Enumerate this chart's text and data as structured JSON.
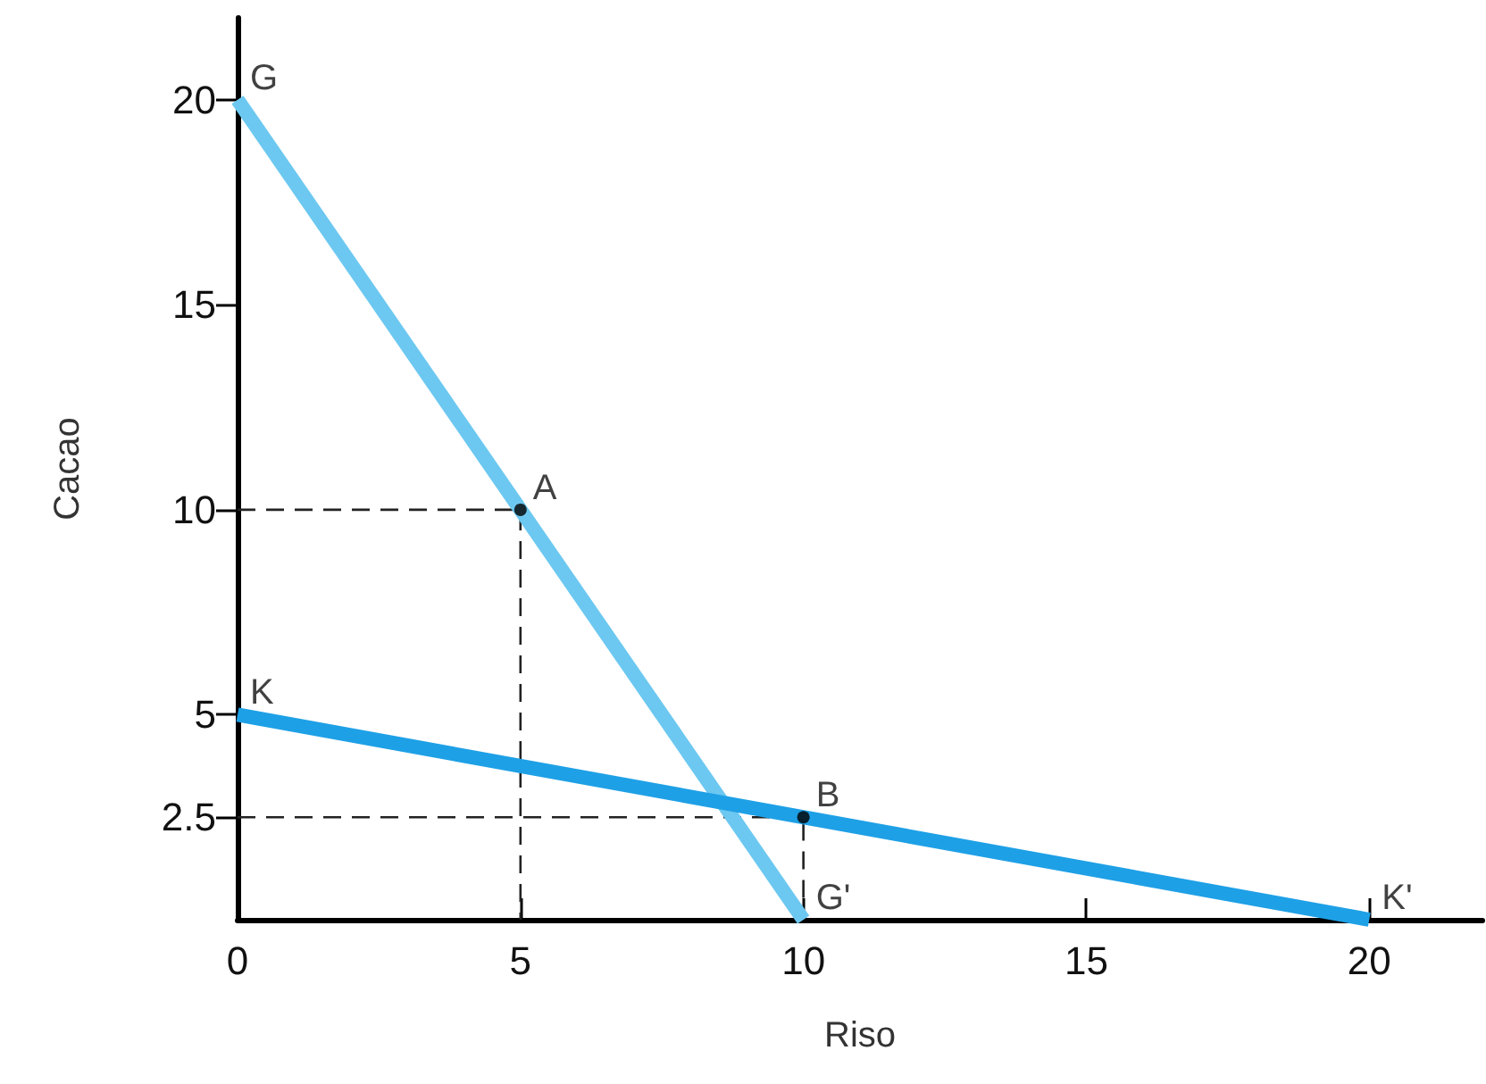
{
  "chart_data": {
    "type": "line",
    "xlabel": "Riso",
    "ylabel": "Cacao",
    "xlim": [
      0,
      22
    ],
    "ylim": [
      0,
      22
    ],
    "xticks": [
      0,
      5,
      10,
      15,
      20
    ],
    "yticks": [
      2.5,
      5,
      10,
      15,
      20
    ],
    "grid": false,
    "series": [
      {
        "color": "#6cc8f0",
        "x": [
          0,
          10
        ],
        "values": [
          20,
          0
        ]
      },
      {
        "color": "#1ea0e6",
        "x": [
          0,
          20
        ],
        "values": [
          5,
          0
        ]
      },
      {
        "color": "#222222",
        "line_style": "dashed",
        "x": [
          0,
          5,
          5
        ],
        "values": [
          10,
          10,
          0
        ]
      },
      {
        "color": "#222222",
        "line_style": "dashed",
        "x": [
          0,
          10,
          10
        ],
        "values": [
          2.5,
          2.5,
          0
        ]
      },
      {
        "type": "scatter",
        "color": "#000000",
        "marker": "circle",
        "x": [
          5,
          10
        ],
        "values": [
          10,
          2.5
        ]
      }
    ],
    "annotations": [
      {
        "text": "G",
        "x": 0,
        "y": 20
      },
      {
        "text": "A",
        "x": 5,
        "y": 10
      },
      {
        "text": "K",
        "x": 0,
        "y": 5
      },
      {
        "text": "B",
        "x": 10,
        "y": 2.5
      },
      {
        "text": "G'",
        "x": 10,
        "y": 0
      },
      {
        "text": "K'",
        "x": 20,
        "y": 0
      }
    ]
  }
}
